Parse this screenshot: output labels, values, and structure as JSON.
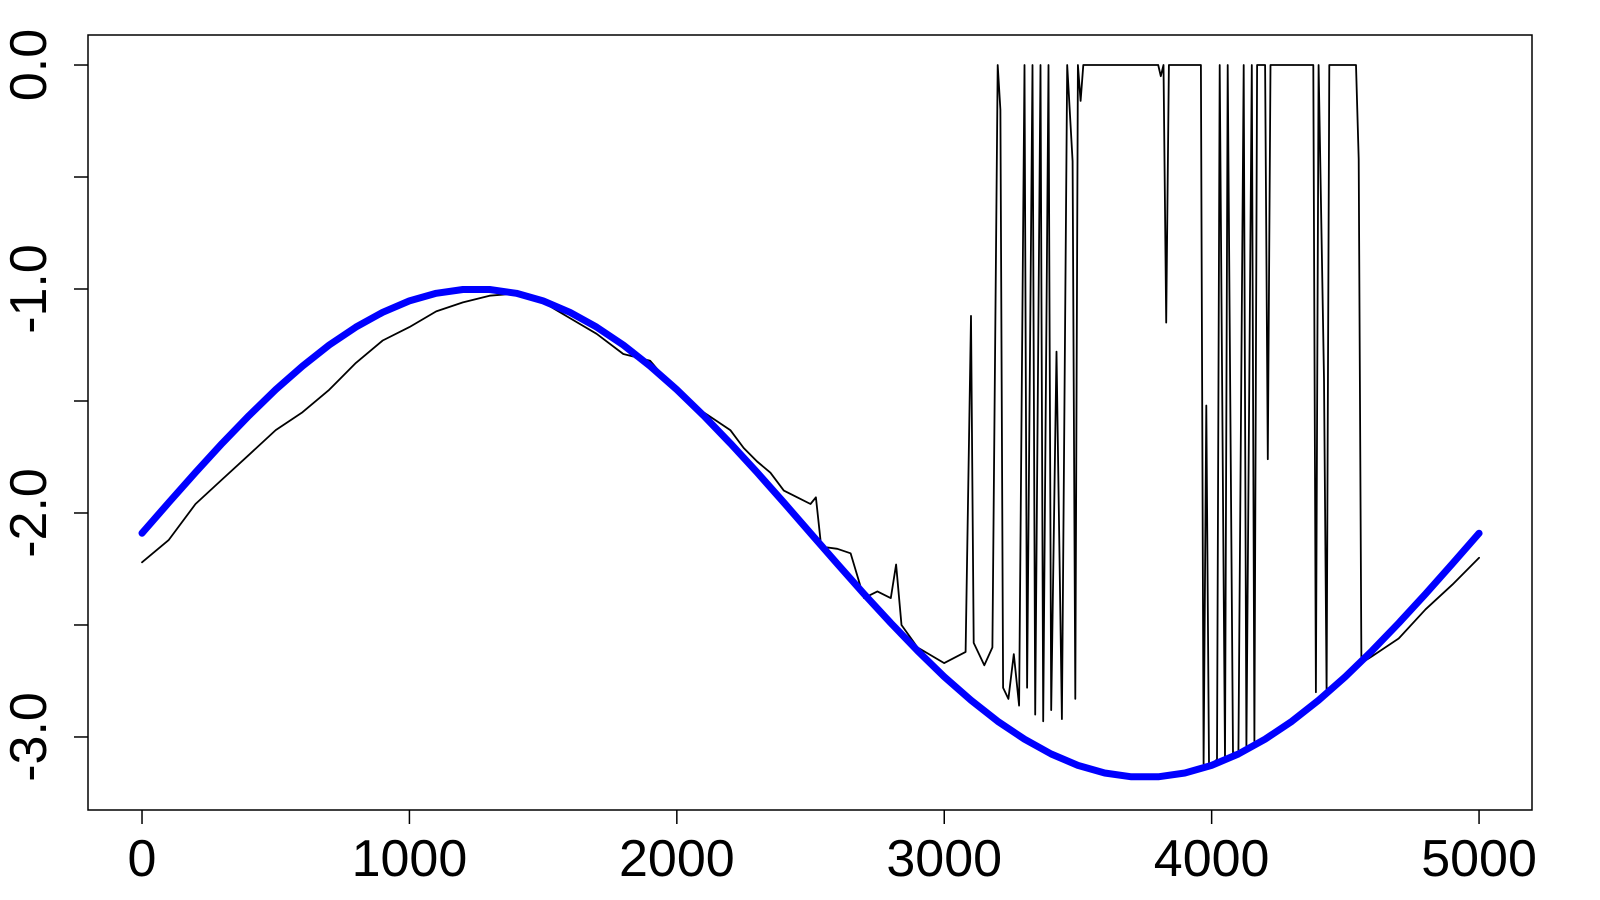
{
  "chart_data": {
    "type": "line",
    "xlim": [
      -202,
      5198
    ],
    "ylim": [
      -3.326,
      0.134
    ],
    "xticks": [
      0,
      1000,
      2000,
      3000,
      4000,
      5000
    ],
    "yticks": [
      {
        "value": 0,
        "label": "0.0"
      },
      {
        "value": -0.5,
        "label": null
      },
      {
        "value": -1,
        "label": "-1.0"
      },
      {
        "value": -1.5,
        "label": null
      },
      {
        "value": -2,
        "label": "-2.0"
      },
      {
        "value": -2.5,
        "label": null
      },
      {
        "value": -3,
        "label": "-3.0"
      }
    ],
    "series": [
      {
        "color": "#000000",
        "x": [
          0,
          100,
          200,
          300,
          400,
          500,
          600,
          700,
          800,
          900,
          1000,
          1100,
          1200,
          1300,
          1400,
          1500,
          1600,
          1700,
          1800,
          1900,
          2000,
          2100,
          2200,
          2250,
          2300,
          2350,
          2400,
          2450,
          2500,
          2520,
          2540,
          2600,
          2650,
          2700,
          2750,
          2800,
          2820,
          2840,
          2900,
          3000,
          3080,
          3100,
          3110,
          3150,
          3180,
          3200,
          3210,
          3220,
          3240,
          3260,
          3280,
          3300,
          3310,
          3330,
          3340,
          3360,
          3370,
          3390,
          3400,
          3420,
          3440,
          3460,
          3480,
          3490,
          3500,
          3510,
          3520,
          3800,
          3810,
          3820,
          3830,
          3840,
          3960,
          3970,
          3980,
          3990,
          4000,
          4020,
          4030,
          4050,
          4060,
          4080,
          4100,
          4120,
          4130,
          4150,
          4160,
          4170,
          4200,
          4210,
          4220,
          4380,
          4390,
          4400,
          4420,
          4430,
          4440,
          4540,
          4550,
          4560,
          4600,
          4700,
          4800,
          4900,
          5000
        ],
        "values": [
          -2.22,
          -2.12,
          -1.96,
          -1.85,
          -1.74,
          -1.63,
          -1.55,
          -1.45,
          -1.33,
          -1.23,
          -1.17,
          -1.1,
          -1.06,
          -1.03,
          -1.02,
          -1.06,
          -1.13,
          -1.2,
          -1.29,
          -1.32,
          -1.46,
          -1.55,
          -1.63,
          -1.71,
          -1.77,
          -1.82,
          -1.9,
          -1.93,
          -1.96,
          -1.93,
          -2.15,
          -2.16,
          -2.18,
          -2.38,
          -2.35,
          -2.38,
          -2.23,
          -2.5,
          -2.6,
          -2.67,
          -2.62,
          -1.12,
          -2.58,
          -2.68,
          -2.6,
          0,
          -0.2,
          -2.78,
          -2.83,
          -2.63,
          -2.86,
          0,
          -2.78,
          0,
          -2.9,
          0,
          -2.93,
          0,
          -2.88,
          -1.28,
          -2.92,
          0,
          -0.43,
          -2.83,
          0,
          -0.16,
          0,
          0,
          -0.05,
          0,
          -1.15,
          0,
          0,
          -3.12,
          -1.52,
          -3.12,
          -3.12,
          -3.1,
          0,
          -3.1,
          0,
          -3.07,
          -3.07,
          0,
          -3.05,
          0,
          -3.02,
          0,
          0,
          -1.76,
          0,
          0,
          -2.8,
          0,
          -1.4,
          -2.8,
          0,
          0,
          -0.42,
          -2.67,
          -2.64,
          -2.56,
          -2.43,
          -2.32,
          -2.2
        ]
      },
      {
        "color": "#0000ff",
        "x": [
          0,
          100,
          200,
          300,
          400,
          500,
          600,
          700,
          800,
          900,
          1000,
          1100,
          1200,
          1300,
          1400,
          1500,
          1600,
          1700,
          1800,
          1900,
          2000,
          2100,
          2200,
          2300,
          2400,
          2500,
          2600,
          2700,
          2800,
          2900,
          3000,
          3100,
          3200,
          3300,
          3400,
          3500,
          3600,
          3700,
          3800,
          3900,
          4000,
          4100,
          4200,
          4300,
          4400,
          4500,
          4600,
          4700,
          4800,
          4900,
          5000
        ],
        "values": [
          -2.09,
          -1.953,
          -1.819,
          -1.689,
          -1.565,
          -1.449,
          -1.344,
          -1.25,
          -1.17,
          -1.104,
          -1.053,
          -1.019,
          -1.002,
          -1.002,
          -1.019,
          -1.053,
          -1.104,
          -1.17,
          -1.25,
          -1.344,
          -1.449,
          -1.565,
          -1.689,
          -1.819,
          -1.953,
          -2.09,
          -2.227,
          -2.361,
          -2.491,
          -2.615,
          -2.731,
          -2.836,
          -2.93,
          -3.01,
          -3.076,
          -3.127,
          -3.161,
          -3.178,
          -3.178,
          -3.161,
          -3.127,
          -3.076,
          -3.01,
          -2.93,
          -2.836,
          -2.731,
          -2.615,
          -2.491,
          -2.361,
          -2.227,
          -2.09
        ]
      }
    ]
  }
}
